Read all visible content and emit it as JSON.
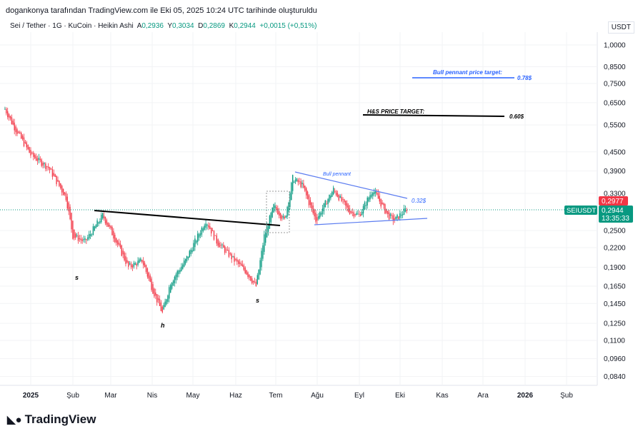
{
  "header": "dogankonya tarafından TradingView.com ile Eki 05, 2025 10:24 UTC tarihinde oluşturuldu",
  "legend": {
    "symbol": "Sei / Tether · 1G · KuCoin · Heikin Ashi",
    "o_label": "A",
    "o": "0,2936",
    "h_label": "Y",
    "h": "0,3034",
    "l_label": "D",
    "l": "0,2869",
    "c_label": "K",
    "c": "0,2944",
    "change": "+0,0015 (+0,51%)"
  },
  "currency": "USDT",
  "price_tags": {
    "prev": "0,2977",
    "symbol": "SEIUSDT",
    "last": "0,2944",
    "countdown": "13:35:33"
  },
  "colors": {
    "up": "#089981",
    "down": "#f23645",
    "blue": "#2962ff"
  },
  "annotations": {
    "bull_target_label": "Bull pennant price target:",
    "bull_target_value": "0.78$",
    "hs_target_label": "H&S PRICE TARGET:",
    "hs_target_value": "0.60$",
    "pennant_label": "Bull pennant",
    "pennant_value": "0.32$",
    "s1": "s",
    "h": "h",
    "s2": "s"
  },
  "logo": "TradingView",
  "chart_data": {
    "type": "candlestick",
    "scale": "log",
    "y_ticks": [
      "1,0000",
      "0,8500",
      "0,7500",
      "0,6500",
      "0,5500",
      "0,4500",
      "0,3900",
      "0,3300",
      "0,2500",
      "0,2200",
      "0,1900",
      "0,1650",
      "0,1450",
      "0,1250",
      "0,1100",
      "0,0960",
      "0,0840"
    ],
    "x_ticks": [
      "2025",
      "Şub",
      "Mar",
      "Nis",
      "May",
      "Haz",
      "Tem",
      "Ağu",
      "Eyl",
      "Eki",
      "Kas",
      "Ara",
      "2026",
      "Şub"
    ],
    "path": [
      [
        -19,
        0.62
      ],
      [
        -13,
        0.55
      ],
      [
        0,
        0.44
      ],
      [
        13,
        0.4
      ],
      [
        26,
        0.32
      ],
      [
        31,
        0.24
      ],
      [
        40,
        0.23
      ],
      [
        53,
        0.28
      ],
      [
        61,
        0.24
      ],
      [
        72,
        0.19
      ],
      [
        82,
        0.2
      ],
      [
        90,
        0.16
      ],
      [
        97,
        0.135
      ],
      [
        103,
        0.17
      ],
      [
        114,
        0.2
      ],
      [
        129,
        0.27
      ],
      [
        137,
        0.23
      ],
      [
        150,
        0.2
      ],
      [
        158,
        0.185
      ],
      [
        166,
        0.165
      ],
      [
        172,
        0.24
      ],
      [
        179,
        0.3
      ],
      [
        187,
        0.27
      ],
      [
        193,
        0.37
      ],
      [
        200,
        0.35
      ],
      [
        210,
        0.27
      ],
      [
        223,
        0.34
      ],
      [
        234,
        0.29
      ],
      [
        242,
        0.28
      ],
      [
        252,
        0.34
      ],
      [
        263,
        0.28
      ],
      [
        268,
        0.27
      ],
      [
        277,
        0.294
      ]
    ]
  }
}
